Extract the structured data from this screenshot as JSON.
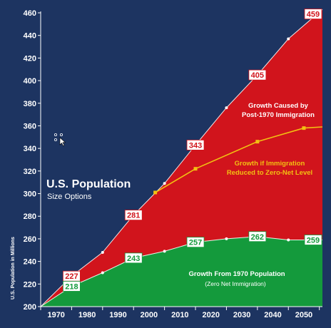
{
  "chart_data": {
    "type": "area",
    "title": "U.S. Population",
    "subtitle": "Size Options",
    "ylabel": "U.S. Population in Millions",
    "xlabel": "",
    "ylim": [
      200,
      460
    ],
    "xlim": [
      1965,
      2056
    ],
    "yticks": [
      200,
      220,
      240,
      260,
      280,
      300,
      320,
      340,
      360,
      380,
      400,
      420,
      440,
      460
    ],
    "xticks": [
      "1970",
      "1980",
      "1990",
      "2000",
      "2010",
      "2020",
      "2030",
      "2040",
      "2050"
    ],
    "xtick_values": [
      1970,
      1980,
      1990,
      2000,
      2010,
      2020,
      2030,
      2040,
      2050
    ],
    "grid": false,
    "series": [
      {
        "name": "Growth Caused by Post-1970 Immigration",
        "color": "#d1141c",
        "x": [
          1965,
          1975,
          1985,
          1995,
          2005,
          2015,
          2025,
          2035,
          2045,
          2056
        ],
        "values": [
          200,
          227,
          248,
          281,
          309,
          343,
          376,
          405,
          437,
          463
        ]
      },
      {
        "name": "Growth if Immigration Reduced to Zero-Net Level",
        "color": "#f2c012",
        "x": [
          2002,
          2015,
          2035,
          2050,
          2056
        ],
        "values": [
          301,
          322,
          346,
          358,
          359
        ]
      },
      {
        "name": "Growth From 1970 Population",
        "color": "#149a3c",
        "x": [
          1965,
          1975,
          1985,
          1995,
          2005,
          2015,
          2025,
          2035,
          2045,
          2056
        ],
        "values": [
          200,
          218,
          230,
          243,
          249,
          257,
          260,
          262,
          259,
          259
        ]
      }
    ],
    "data_labels": [
      {
        "text": "227",
        "x": 1975,
        "y": 227,
        "color": "#d1141c"
      },
      {
        "text": "281",
        "x": 1995,
        "y": 281,
        "color": "#d1141c"
      },
      {
        "text": "343",
        "x": 2015,
        "y": 343,
        "color": "#d1141c"
      },
      {
        "text": "405",
        "x": 2035,
        "y": 405,
        "color": "#d1141c"
      },
      {
        "text": "459",
        "x": 2053,
        "y": 459,
        "color": "#d1141c"
      },
      {
        "text": "218",
        "x": 1975,
        "y": 218,
        "color": "#149a3c"
      },
      {
        "text": "243",
        "x": 1995,
        "y": 243,
        "color": "#149a3c"
      },
      {
        "text": "257",
        "x": 2015,
        "y": 257,
        "color": "#149a3c"
      },
      {
        "text": "262",
        "x": 2035,
        "y": 262,
        "color": "#149a3c"
      },
      {
        "text": "259",
        "x": 2053,
        "y": 259,
        "color": "#149a3c"
      }
    ],
    "annotations": {
      "immigration_line1": "Growth Caused by",
      "immigration_line2": "Post-1970 Immigration",
      "zero_net_line1": "Growth if Immigration",
      "zero_net_line2": "Reduced to Zero-Net Level",
      "base_line1": "Growth From 1970 Population",
      "base_line2": "(Zero Net Immigration)"
    },
    "colors": {
      "background": "#1d3461",
      "immigration": "#d1141c",
      "zero_net": "#f2c012",
      "base": "#149a3c",
      "text": "#ffffff"
    }
  }
}
